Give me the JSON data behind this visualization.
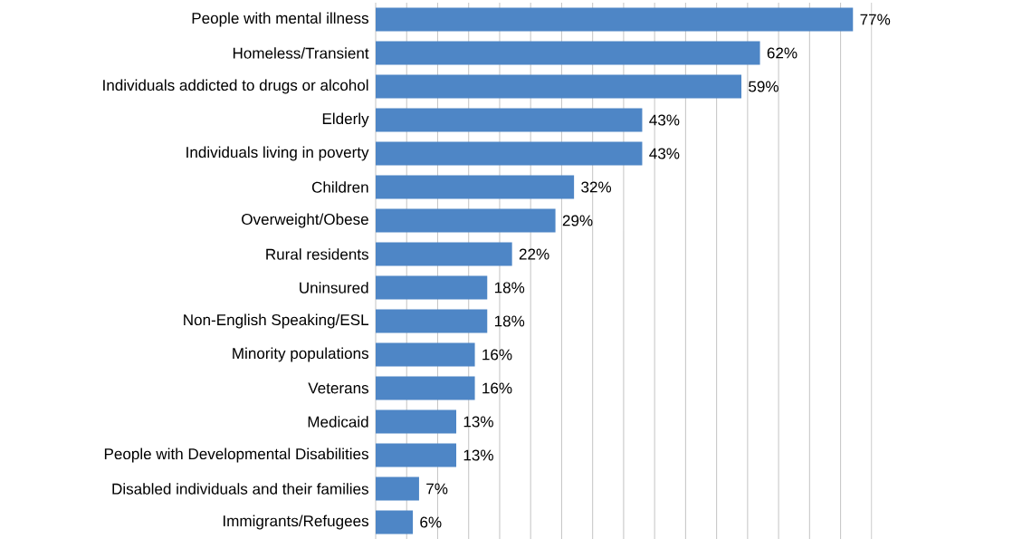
{
  "chart_data": {
    "type": "bar",
    "orientation": "horizontal",
    "categories": [
      "People with mental illness",
      "Homeless/Transient",
      "Individuals addicted to drugs or alcohol",
      "Elderly",
      "Individuals living in poverty",
      "Children",
      "Overweight/Obese",
      "Rural residents",
      "Uninsured",
      "Non-English Speaking/ESL",
      "Minority populations",
      "Veterans",
      "Medicaid",
      "People with Developmental Disabilities",
      "Disabled individuals and their families",
      "Immigrants/Refugees"
    ],
    "values": [
      77,
      62,
      59,
      43,
      43,
      32,
      29,
      22,
      18,
      18,
      16,
      16,
      13,
      13,
      7,
      6
    ],
    "value_labels": [
      "77%",
      "62%",
      "59%",
      "43%",
      "43%",
      "32%",
      "29%",
      "22%",
      "18%",
      "18%",
      "16%",
      "16%",
      "13%",
      "13%",
      "7%",
      "6%"
    ],
    "color": "#4e86c6",
    "grid": "x",
    "tick_labels": "y"
  }
}
